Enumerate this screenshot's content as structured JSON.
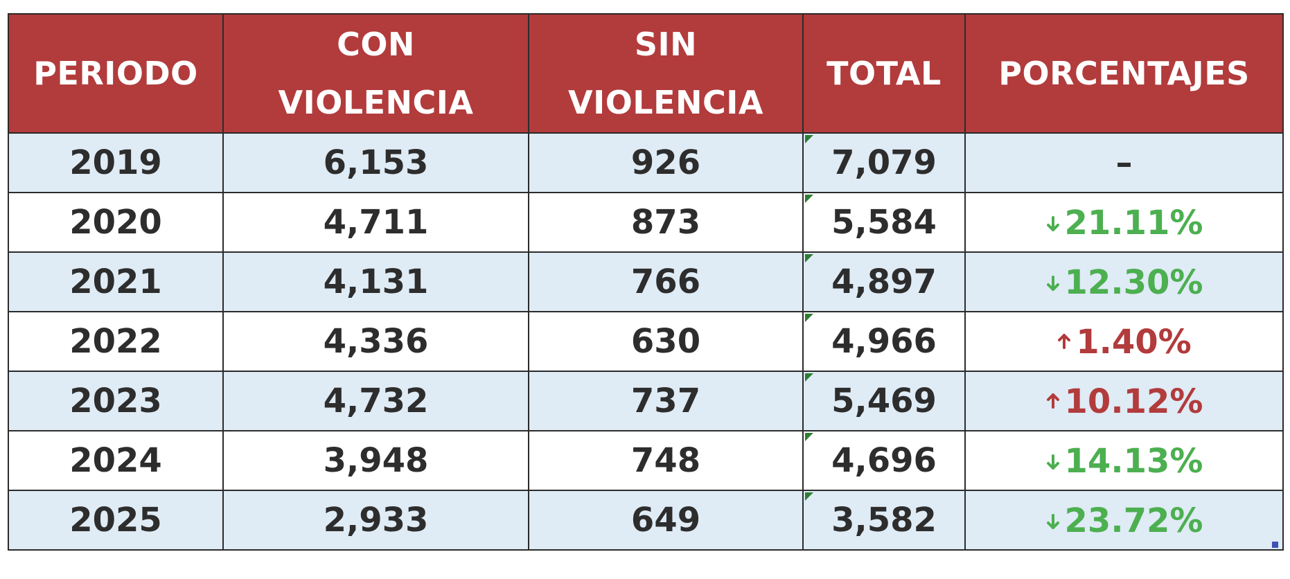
{
  "table": {
    "headers": {
      "periodo": "PERIODO",
      "con_violencia_1": "CON",
      "con_violencia_2": "VIOLENCIA",
      "sin_violencia_1": "SIN",
      "sin_violencia_2": "VIOLENCIA",
      "total": "TOTAL",
      "porcentajes": "PORCENTAJES"
    },
    "rows": [
      {
        "periodo": "2019",
        "con": "6,153",
        "sin": "926",
        "total": "7,079",
        "pct": "–",
        "trend": "none"
      },
      {
        "periodo": "2020",
        "con": "4,711",
        "sin": "873",
        "total": "5,584",
        "pct": "21.11%",
        "trend": "down"
      },
      {
        "periodo": "2021",
        "con": "4,131",
        "sin": "766",
        "total": "4,897",
        "pct": "12.30%",
        "trend": "down"
      },
      {
        "periodo": "2022",
        "con": "4,336",
        "sin": "630",
        "total": "4,966",
        "pct": "1.40%",
        "trend": "up"
      },
      {
        "periodo": "2023",
        "con": "4,732",
        "sin": "737",
        "total": "5,469",
        "pct": "10.12%",
        "trend": "up"
      },
      {
        "periodo": "2024",
        "con": "3,948",
        "sin": "748",
        "total": "4,696",
        "pct": "14.13%",
        "trend": "down"
      },
      {
        "periodo": "2025",
        "con": "2,933",
        "sin": "649",
        "total": "3,582",
        "pct": "23.72%",
        "trend": "down"
      }
    ]
  },
  "icons": {
    "down": "arrow-down-icon",
    "up": "arrow-up-icon"
  },
  "colors": {
    "header_bg": "#b23b3c",
    "header_text": "#ffffff",
    "row_shaded": "#dfebf5",
    "row_plain": "#ffffff",
    "decrease": "#4caf50",
    "increase": "#b23b3c",
    "body_text": "#2d2d2d"
  }
}
